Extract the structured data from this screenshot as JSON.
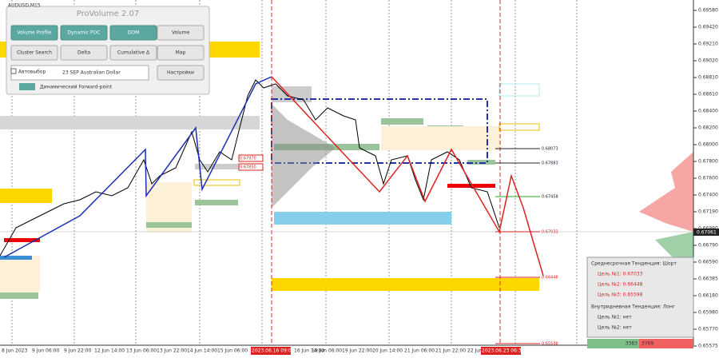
{
  "chart_header": {
    "symbol": "AUDUSD,M15"
  },
  "panel": {
    "title": "ProVolume 2.07",
    "buttons": [
      "Volume Profile",
      "Dynamic POC",
      "DOM",
      "Volume",
      "Cluster Search",
      "Delta",
      "Cumulative Δ",
      "Map"
    ],
    "auto_select": "Автовыбор",
    "instrument": "23 SEP Australian Dollar",
    "settings": "Настройки",
    "forward_point": "Динамический Forward-point"
  },
  "price_axis": {
    "labels": [
      "0.69580",
      "0.69420",
      "0.69210",
      "0.69020",
      "0.68810",
      "0.68610",
      "0.68400",
      "0.68200",
      "0.68000",
      "0.67800",
      "0.67600",
      "0.67400",
      "0.67190",
      "0.66990",
      "0.66790",
      "0.66590",
      "0.66385",
      "0.66180",
      "0.65980",
      "0.65770",
      "0.65575"
    ],
    "current": "0.67061"
  },
  "time_axis": {
    "labels": [
      "8 Jun 2023",
      "9 Jun 06:00",
      "9 Jun 22:00",
      "12 Jun 14:00",
      "13 Jun 06:00",
      "13 Jun 22:00",
      "14 Jun 14:00",
      "15 Jun 06:00",
      "2023.06.16 09:00",
      "16 Jun 14:00",
      "19 Jun 06:00",
      "19 Jun 22:00",
      "20 Jun 14:00",
      "21 Jun 06:00",
      "21 Jun 22:00",
      "22 Jun 14:00",
      "2023.06.23 06:30"
    ]
  },
  "levels": [
    "0.68073",
    "0.67883",
    "0.67458",
    "0.67033",
    "0.66448",
    "0.65598",
    "0.67970",
    "0.67850"
  ],
  "info": {
    "mid_trend": "Среднесрочная Тенденция: Шорт",
    "mid_targets": [
      "Цель №1: 0.67033",
      "Цель №2: 0.66448",
      "Цель №3: 0.65598"
    ],
    "intraday_trend": "Внутридневная Тенденция: Лонг",
    "intraday_targets": [
      "Цель №1: нет",
      "Цель №2: нет"
    ],
    "buy": "3383",
    "sell": "3769"
  }
}
